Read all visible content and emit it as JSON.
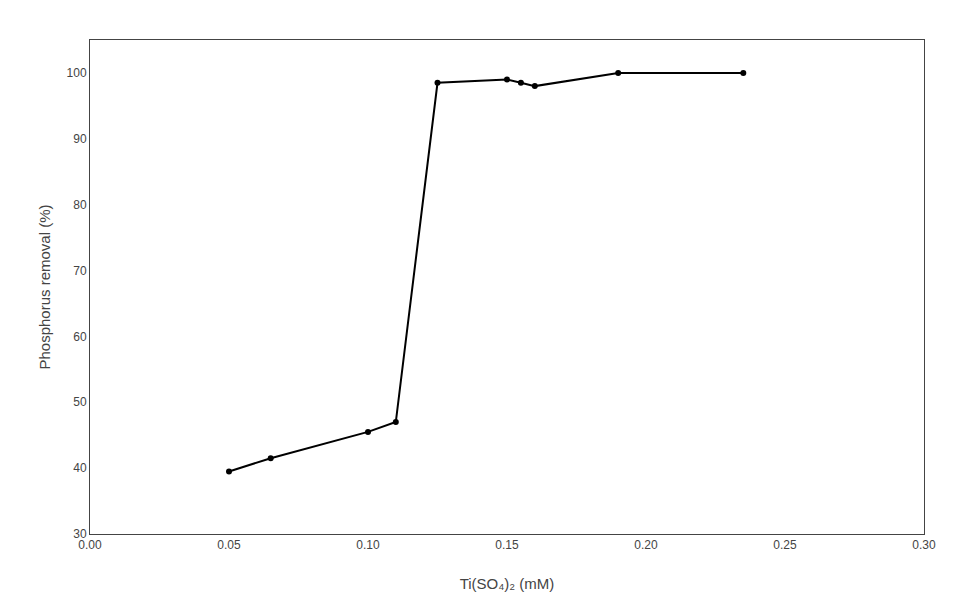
{
  "chart_data": {
    "type": "line",
    "x": [
      0.05,
      0.065,
      0.1,
      0.11,
      0.125,
      0.15,
      0.155,
      0.16,
      0.19,
      0.235
    ],
    "values": [
      39.5,
      41.5,
      45.5,
      47.0,
      98.5,
      99.0,
      98.5,
      98.0,
      100.0,
      100.0
    ],
    "xlabel": "Ti(SO₄)₂ (mM)",
    "ylabel": "Phosphorus removal (%)",
    "xlim": [
      0.0,
      0.3
    ],
    "ylim": [
      30,
      105
    ],
    "xticks": [
      {
        "value": 0,
        "label": "0.00"
      },
      0.05,
      {
        "value": 0.1,
        "label": "0.10"
      },
      0.15,
      {
        "value": 0.2,
        "label": "0.20"
      },
      0.25,
      {
        "value": 0.3,
        "label": "0.30"
      }
    ],
    "yticks": [
      30,
      40,
      50,
      60,
      70,
      80,
      90,
      100
    ],
    "color": "#000000",
    "marker": "circle",
    "line_style": "solid",
    "grid": false
  }
}
